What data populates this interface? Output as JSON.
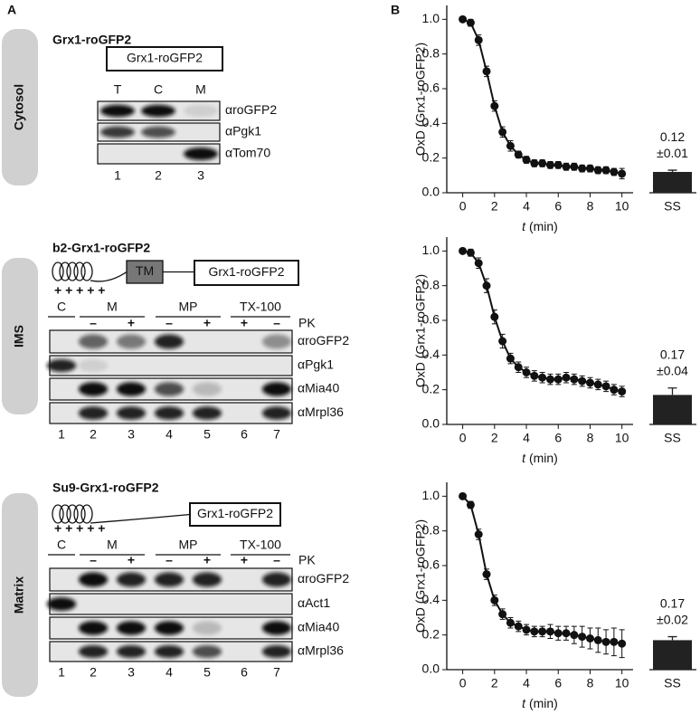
{
  "panel_a": {
    "label": "A",
    "sections": [
      {
        "compartment": "Cytosol",
        "title": "Grx1-roGFP2",
        "construct_boxes": [
          "Grx1-roGFP2"
        ],
        "lanes": [
          "T",
          "C",
          "M"
        ],
        "antibodies": [
          "αroGFP2",
          "αPgk1",
          "αTom70"
        ],
        "lane_numbers": [
          "1",
          "2",
          "3"
        ]
      },
      {
        "compartment": "IMS",
        "title": "b2-Grx1-roGFP2",
        "tm": "TM",
        "construct_boxes": [
          "Grx1-roGFP2"
        ],
        "charges": "+ + + + +",
        "fractions": [
          "C",
          "M",
          "MP",
          "TX-100"
        ],
        "treatment": "PK",
        "treatment_signs": [
          null,
          "–",
          "+",
          "–",
          "+",
          "+",
          "–"
        ],
        "antibodies": [
          "αroGFP2",
          "αPgk1",
          "αMia40",
          "αMrpl36"
        ],
        "lane_numbers": [
          "1",
          "2",
          "3",
          "4",
          "5",
          "6",
          "7"
        ]
      },
      {
        "compartment": "Matrix",
        "title": "Su9-Grx1-roGFP2",
        "construct_boxes": [
          "Grx1-roGFP2"
        ],
        "charges": "+ + + + +",
        "fractions": [
          "C",
          "M",
          "MP",
          "TX-100"
        ],
        "treatment": "PK",
        "treatment_signs": [
          null,
          "–",
          "+",
          "–",
          "+",
          "+",
          "–"
        ],
        "antibodies": [
          "αroGFP2",
          "αAct1",
          "αMia40",
          "αMrpl36"
        ],
        "lane_numbers": [
          "1",
          "2",
          "3",
          "4",
          "5",
          "6",
          "7"
        ]
      }
    ]
  },
  "panel_b_label": "B",
  "chart_data": [
    {
      "type": "line",
      "y_label": "OxD (Grx1-roGFP2)",
      "x_label_var": "t",
      "x_label_unit": "(min)",
      "x": [
        0,
        0.5,
        1,
        1.5,
        2,
        2.5,
        3,
        3.5,
        4,
        4.5,
        5,
        5.5,
        6,
        6.5,
        7,
        7.5,
        8,
        8.5,
        9,
        9.5,
        10
      ],
      "series": [
        {
          "color": "#111111",
          "values": [
            1.0,
            0.98,
            0.88,
            0.7,
            0.5,
            0.35,
            0.27,
            0.22,
            0.19,
            0.17,
            0.17,
            0.16,
            0.16,
            0.15,
            0.15,
            0.14,
            0.14,
            0.13,
            0.13,
            0.12,
            0.11
          ],
          "errors": [
            0.01,
            0.02,
            0.03,
            0.03,
            0.03,
            0.03,
            0.03,
            0.02,
            0.02,
            0.02,
            0.02,
            0.02,
            0.02,
            0.02,
            0.02,
            0.02,
            0.02,
            0.02,
            0.02,
            0.02,
            0.03
          ]
        }
      ],
      "xlim": [
        -1,
        10.7
      ],
      "ylim": [
        0,
        1.08
      ],
      "xticks": [
        0,
        2,
        4,
        6,
        8,
        10
      ],
      "yticks": [
        {
          "value": 0,
          "label": "0.0"
        },
        0.2,
        0.4,
        0.6,
        0.8,
        {
          "value": 1,
          "label": "1.0"
        }
      ],
      "ss": {
        "category": "SS",
        "value": 0.12,
        "error": 0.01,
        "error_label": "±0.01"
      }
    },
    {
      "type": "line",
      "y_label": "OxD (Grx1-roGFP2)",
      "x_label_var": "t",
      "x_label_unit": "(min)",
      "x": [
        0,
        0.5,
        1,
        1.5,
        2,
        2.5,
        3,
        3.5,
        4,
        4.5,
        5,
        5.5,
        6,
        6.5,
        7,
        7.5,
        8,
        8.5,
        9,
        9.5,
        10
      ],
      "series": [
        {
          "color": "#111111",
          "values": [
            1.0,
            0.99,
            0.93,
            0.8,
            0.62,
            0.48,
            0.38,
            0.33,
            0.3,
            0.28,
            0.27,
            0.26,
            0.26,
            0.27,
            0.26,
            0.25,
            0.24,
            0.23,
            0.22,
            0.2,
            0.19
          ],
          "errors": [
            0.01,
            0.02,
            0.03,
            0.04,
            0.04,
            0.04,
            0.03,
            0.03,
            0.03,
            0.03,
            0.03,
            0.03,
            0.03,
            0.03,
            0.03,
            0.03,
            0.03,
            0.03,
            0.03,
            0.03,
            0.03
          ]
        }
      ],
      "xlim": [
        -1,
        10.7
      ],
      "ylim": [
        0,
        1.08
      ],
      "xticks": [
        0,
        2,
        4,
        6,
        8,
        10
      ],
      "yticks": [
        {
          "value": 0,
          "label": "0.0"
        },
        0.2,
        0.4,
        0.6,
        0.8,
        {
          "value": 1,
          "label": "1.0"
        }
      ],
      "ss": {
        "category": "SS",
        "value": 0.17,
        "error": 0.04,
        "error_label": "±0.04"
      }
    },
    {
      "type": "line",
      "y_label": "OxD (Grx1-roGFP2)",
      "x_label_var": "t",
      "x_label_unit": "(min)",
      "x": [
        0,
        0.5,
        1,
        1.5,
        2,
        2.5,
        3,
        3.5,
        4,
        4.5,
        5,
        5.5,
        6,
        6.5,
        7,
        7.5,
        8,
        8.5,
        9,
        9.5,
        10
      ],
      "series": [
        {
          "color": "#111111",
          "values": [
            1.0,
            0.95,
            0.78,
            0.55,
            0.4,
            0.32,
            0.27,
            0.25,
            0.23,
            0.22,
            0.22,
            0.22,
            0.21,
            0.21,
            0.2,
            0.19,
            0.18,
            0.17,
            0.16,
            0.16,
            0.15
          ],
          "errors": [
            0.01,
            0.02,
            0.03,
            0.03,
            0.03,
            0.03,
            0.03,
            0.03,
            0.03,
            0.03,
            0.03,
            0.04,
            0.04,
            0.04,
            0.05,
            0.06,
            0.06,
            0.07,
            0.07,
            0.08,
            0.08
          ]
        }
      ],
      "xlim": [
        -1,
        10.7
      ],
      "ylim": [
        0,
        1.08
      ],
      "xticks": [
        0,
        2,
        4,
        6,
        8,
        10
      ],
      "yticks": [
        {
          "value": 0,
          "label": "0.0"
        },
        0.2,
        0.4,
        0.6,
        0.8,
        {
          "value": 1,
          "label": "1.0"
        }
      ],
      "ss": {
        "category": "SS",
        "value": 0.17,
        "error": 0.02,
        "error_label": "±0.02"
      }
    }
  ]
}
